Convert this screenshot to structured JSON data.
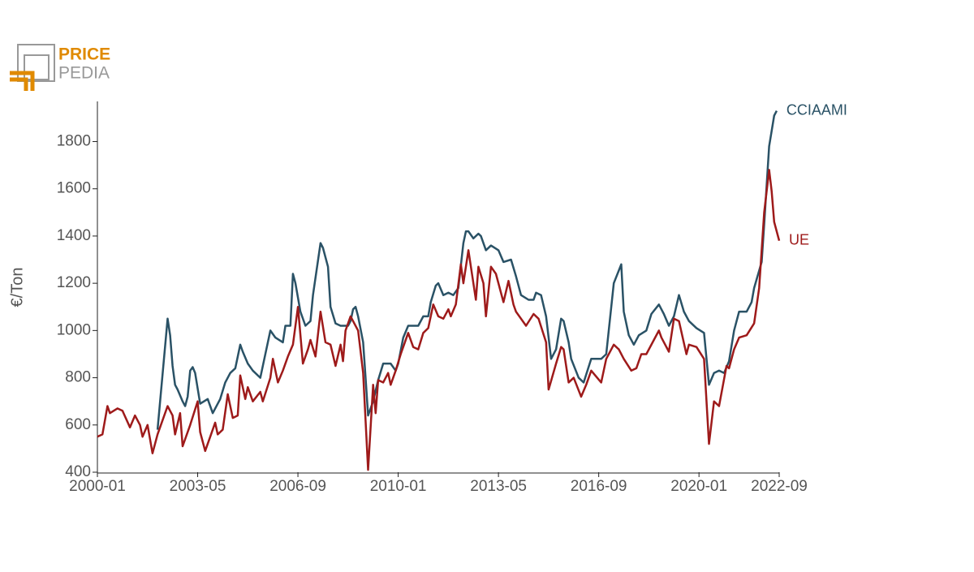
{
  "logo": {
    "line1": "PRICE",
    "line2": "PEDIA"
  },
  "chart_data": {
    "type": "line",
    "y_label": "€/Ton",
    "xlim": [
      "2000-01",
      "2022-09"
    ],
    "xticks": [
      "2000-01",
      "2003-05",
      "2006-09",
      "2010-01",
      "2013-05",
      "2016-09",
      "2020-01",
      "2022-09"
    ],
    "ylim": [
      400,
      1970
    ],
    "yticks": [
      400,
      600,
      800,
      1000,
      1200,
      1400,
      1600,
      1800
    ],
    "grid": false,
    "series": [
      {
        "name": "CCIAAMI",
        "color": "#2a5266",
        "x": [
          "2002-01",
          "2002-05",
          "2002-06",
          "2002-07",
          "2002-08",
          "2002-09",
          "2002-11",
          "2002-12",
          "2003-01",
          "2003-02",
          "2003-03",
          "2003-04",
          "2003-06",
          "2003-09",
          "2003-11",
          "2004-02",
          "2004-04",
          "2004-06",
          "2004-08",
          "2004-10",
          "2004-11",
          "2005-01",
          "2005-03",
          "2005-06",
          "2005-08",
          "2005-10",
          "2005-12",
          "2006-03",
          "2006-04",
          "2006-06",
          "2006-07",
          "2006-08",
          "2006-10",
          "2006-12",
          "2007-02",
          "2007-03",
          "2007-06",
          "2007-07",
          "2007-09",
          "2007-10",
          "2007-12",
          "2008-02",
          "2008-05",
          "2008-06",
          "2008-07",
          "2008-08",
          "2008-09",
          "2008-11",
          "2008-12",
          "2009-01",
          "2009-03",
          "2009-05",
          "2009-07",
          "2009-10",
          "2009-12",
          "2010-01",
          "2010-03",
          "2010-05",
          "2010-09",
          "2010-11",
          "2011-01",
          "2011-02",
          "2011-04",
          "2011-05",
          "2011-07",
          "2011-09",
          "2011-11",
          "2012-01",
          "2012-03",
          "2012-04",
          "2012-05",
          "2012-07",
          "2012-09",
          "2012-10",
          "2012-12",
          "2013-02",
          "2013-05",
          "2013-07",
          "2013-10",
          "2013-12",
          "2014-02",
          "2014-05",
          "2014-07",
          "2014-08",
          "2014-10",
          "2014-12",
          "2015-02",
          "2015-04",
          "2015-06",
          "2015-07",
          "2015-09",
          "2015-10",
          "2016-01",
          "2016-03",
          "2016-06",
          "2016-10",
          "2016-12",
          "2017-01",
          "2017-03",
          "2017-06",
          "2017-07",
          "2017-09",
          "2017-11",
          "2018-01",
          "2018-04",
          "2018-06",
          "2018-09",
          "2018-11",
          "2019-01",
          "2019-03",
          "2019-05",
          "2019-07",
          "2019-09",
          "2019-12",
          "2020-03",
          "2020-05",
          "2020-07",
          "2020-09",
          "2020-11",
          "2021-01",
          "2021-03",
          "2021-05",
          "2021-08",
          "2021-10",
          "2021-11",
          "2022-02",
          "2022-03",
          "2022-05",
          "2022-07",
          "2022-08"
        ],
        "values": [
          580,
          1050,
          980,
          850,
          770,
          750,
          700,
          680,
          720,
          830,
          845,
          820,
          690,
          710,
          650,
          710,
          780,
          820,
          840,
          940,
          910,
          860,
          830,
          800,
          900,
          1000,
          970,
          950,
          1020,
          1020,
          1240,
          1200,
          1080,
          1020,
          1040,
          1150,
          1370,
          1350,
          1270,
          1100,
          1030,
          1020,
          1020,
          1040,
          1090,
          1100,
          1060,
          950,
          800,
          640,
          700,
          790,
          860,
          860,
          830,
          860,
          970,
          1020,
          1020,
          1060,
          1060,
          1120,
          1190,
          1200,
          1150,
          1160,
          1150,
          1180,
          1370,
          1420,
          1420,
          1390,
          1410,
          1400,
          1340,
          1360,
          1340,
          1290,
          1300,
          1230,
          1150,
          1130,
          1130,
          1160,
          1150,
          1060,
          880,
          920,
          1050,
          1040,
          950,
          880,
          800,
          780,
          880,
          880,
          900,
          1000,
          1200,
          1280,
          1080,
          980,
          940,
          980,
          1000,
          1070,
          1110,
          1070,
          1020,
          1060,
          1150,
          1080,
          1040,
          1010,
          990,
          770,
          820,
          830,
          820,
          870,
          1000,
          1080,
          1080,
          1120,
          1180,
          1290,
          1450,
          1780,
          1910,
          1930
        ]
      },
      {
        "name": "UE",
        "color": "#9e1a1a",
        "x": [
          "2000-01",
          "2000-03",
          "2000-05",
          "2000-06",
          "2000-09",
          "2000-11",
          "2001-02",
          "2001-04",
          "2001-06",
          "2001-07",
          "2001-09",
          "2001-11",
          "2002-01",
          "2002-05",
          "2002-07",
          "2002-08",
          "2002-10",
          "2002-11",
          "2003-02",
          "2003-05",
          "2003-06",
          "2003-08",
          "2003-10",
          "2003-12",
          "2004-01",
          "2004-03",
          "2004-05",
          "2004-07",
          "2004-09",
          "2004-10",
          "2004-12",
          "2005-01",
          "2005-03",
          "2005-06",
          "2005-07",
          "2005-10",
          "2005-11",
          "2006-01",
          "2006-03",
          "2006-05",
          "2006-07",
          "2006-09",
          "2006-11",
          "2007-01",
          "2007-02",
          "2007-04",
          "2007-06",
          "2007-08",
          "2007-10",
          "2007-12",
          "2008-02",
          "2008-03",
          "2008-04",
          "2008-06",
          "2008-09",
          "2008-11",
          "2009-01",
          "2009-03",
          "2009-04",
          "2009-05",
          "2009-07",
          "2009-09",
          "2009-10",
          "2009-12",
          "2010-02",
          "2010-05",
          "2010-07",
          "2010-09",
          "2010-11",
          "2011-01",
          "2011-03",
          "2011-05",
          "2011-07",
          "2011-09",
          "2011-10",
          "2011-12",
          "2012-02",
          "2012-03",
          "2012-05",
          "2012-08",
          "2012-09",
          "2012-11",
          "2012-12",
          "2013-02",
          "2013-04",
          "2013-07",
          "2013-09",
          "2013-11",
          "2013-12",
          "2014-04",
          "2014-07",
          "2014-09",
          "2014-12",
          "2015-01",
          "2015-04",
          "2015-06",
          "2015-07",
          "2015-09",
          "2015-11",
          "2016-02",
          "2016-04",
          "2016-06",
          "2016-10",
          "2016-12",
          "2017-03",
          "2017-05",
          "2017-07",
          "2017-10",
          "2017-12",
          "2018-02",
          "2018-04",
          "2018-07",
          "2018-09",
          "2018-10",
          "2019-01",
          "2019-03",
          "2019-05",
          "2019-08",
          "2019-09",
          "2019-12",
          "2020-03",
          "2020-05",
          "2020-07",
          "2020-09",
          "2020-12",
          "2021-01",
          "2021-03",
          "2021-05",
          "2021-08",
          "2021-11",
          "2022-01",
          "2022-03",
          "2022-05",
          "2022-06",
          "2022-07",
          "2022-09"
        ],
        "values": [
          550,
          560,
          680,
          650,
          670,
          660,
          590,
          640,
          600,
          550,
          600,
          480,
          560,
          680,
          640,
          560,
          650,
          510,
          600,
          700,
          570,
          490,
          550,
          610,
          560,
          580,
          730,
          630,
          640,
          810,
          710,
          760,
          700,
          740,
          700,
          800,
          880,
          780,
          830,
          890,
          940,
          1100,
          860,
          920,
          960,
          890,
          1080,
          950,
          940,
          850,
          940,
          870,
          1000,
          1060,
          1000,
          820,
          410,
          770,
          650,
          790,
          780,
          820,
          770,
          830,
          900,
          990,
          930,
          920,
          990,
          1010,
          1110,
          1060,
          1050,
          1090,
          1060,
          1110,
          1280,
          1200,
          1340,
          1130,
          1270,
          1200,
          1060,
          1270,
          1240,
          1120,
          1210,
          1110,
          1080,
          1020,
          1070,
          1050,
          950,
          750,
          860,
          930,
          920,
          780,
          800,
          720,
          770,
          830,
          780,
          880,
          940,
          920,
          880,
          830,
          840,
          900,
          900,
          960,
          1000,
          970,
          910,
          1050,
          1040,
          900,
          940,
          930,
          880,
          520,
          700,
          680,
          850,
          840,
          920,
          970,
          980,
          1030,
          1180,
          1500,
          1680,
          1590,
          1460,
          1380
        ]
      }
    ]
  }
}
